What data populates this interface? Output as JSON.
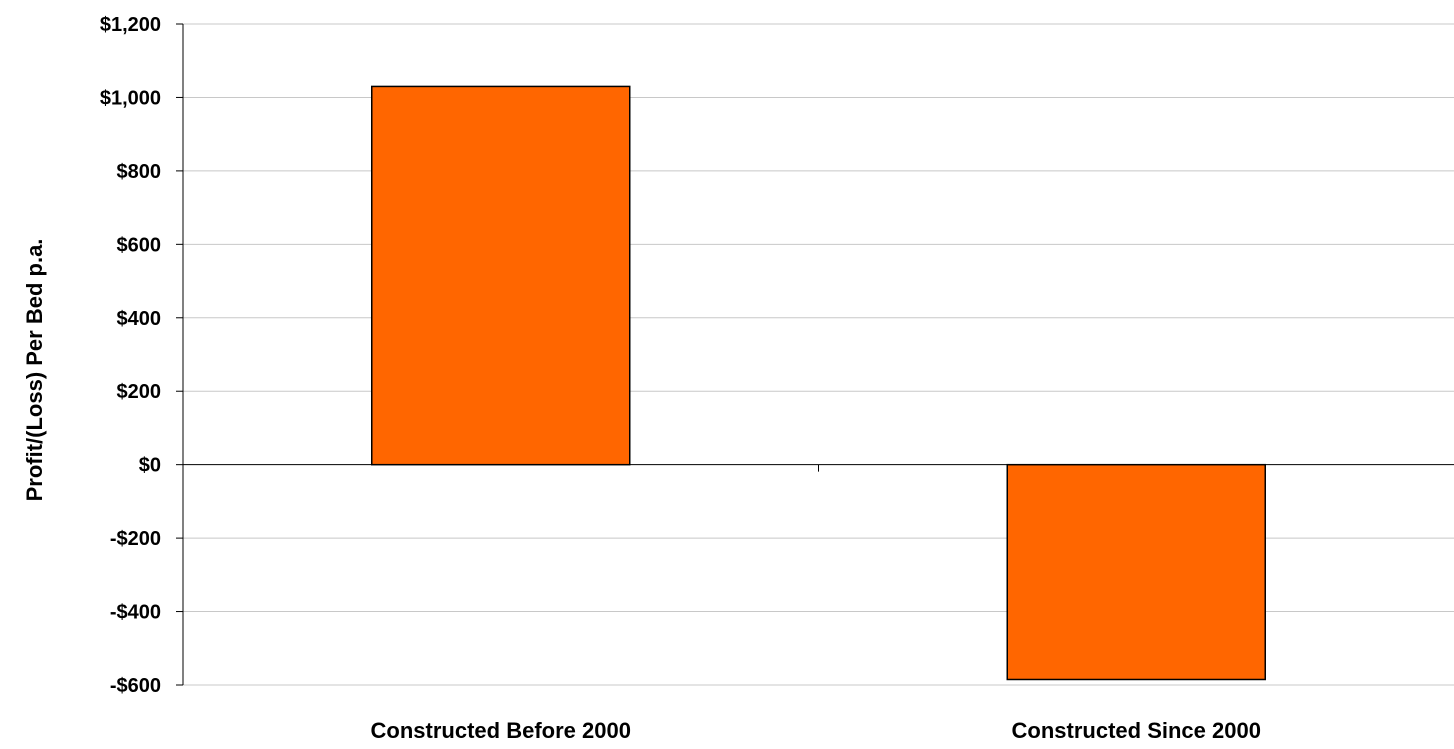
{
  "chart_data": {
    "type": "bar",
    "title": "",
    "xlabel": "",
    "ylabel": "Profit/(Loss) Per Bed p.a.",
    "categories": [
      "Constructed Before 2000",
      "Constructed Since 2000"
    ],
    "values": [
      1030,
      -585
    ],
    "ylim": [
      -600,
      1200
    ],
    "yticks": [
      1200,
      1000,
      800,
      600,
      400,
      200,
      0,
      -200,
      -400,
      -600
    ],
    "ytick_labels": [
      "$1,200",
      "$1,000",
      "$800",
      "$600",
      "$400",
      "$200",
      "$0",
      "-$200",
      "-$400",
      "-$600"
    ],
    "grid": true,
    "legend": "none",
    "bar_color": "#FF6600",
    "bar_edge_color": "#000000",
    "grid_color": "#C8C8C8"
  }
}
